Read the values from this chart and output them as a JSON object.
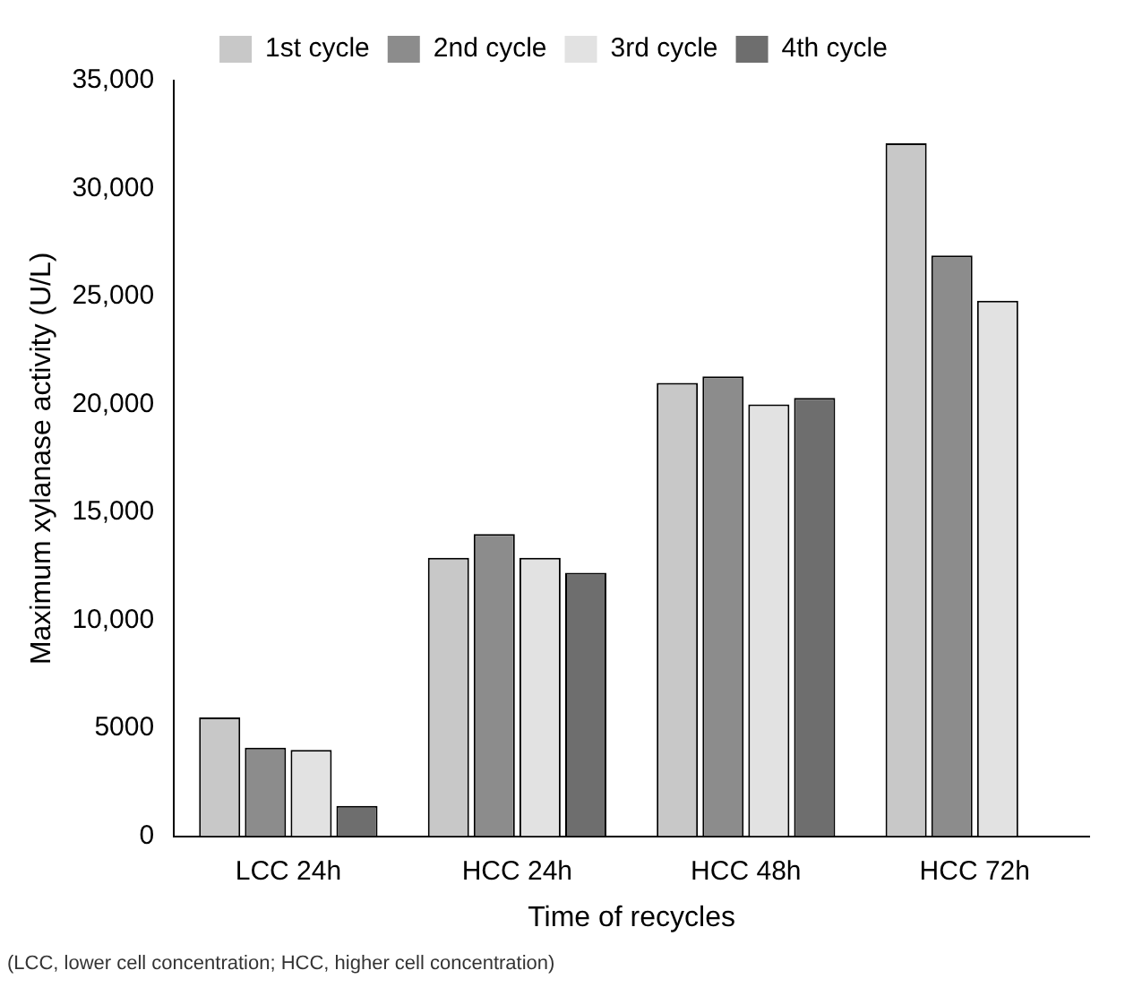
{
  "chart_data": {
    "type": "bar",
    "xlabel": "Time of recycles",
    "ylabel": "Maximum xylanase activity (U/L)",
    "categories": [
      "LCC 24h",
      "HCC 24h",
      "HCC 48h",
      "HCC 72h"
    ],
    "series": [
      {
        "name": "1st cycle",
        "color": "#c8c8c8",
        "values": [
          5500,
          12900,
          21000,
          32100
        ]
      },
      {
        "name": "2nd cycle",
        "color": "#8c8c8c",
        "values": [
          4100,
          14000,
          21300,
          26900
        ]
      },
      {
        "name": "3rd cycle",
        "color": "#e2e2e2",
        "values": [
          4000,
          12900,
          20000,
          24800
        ]
      },
      {
        "name": "4th cycle",
        "color": "#6e6e6e",
        "values": [
          1400,
          12200,
          20300,
          null
        ]
      }
    ],
    "ylim": [
      0,
      35000
    ],
    "yticks": [
      0,
      5000,
      {
        "value": 10000,
        "label": "10,000"
      },
      {
        "value": 15000,
        "label": "15,000"
      },
      {
        "value": 20000,
        "label": "20,000"
      },
      {
        "value": 25000,
        "label": "25,000"
      },
      {
        "value": 30000,
        "label": "30,000"
      },
      {
        "value": 35000,
        "label": "35,000"
      }
    ],
    "grid": false,
    "legend": "top",
    "annotations": [
      "(LCC, lower cell concentration; HCC, higher cell concentration)"
    ]
  }
}
